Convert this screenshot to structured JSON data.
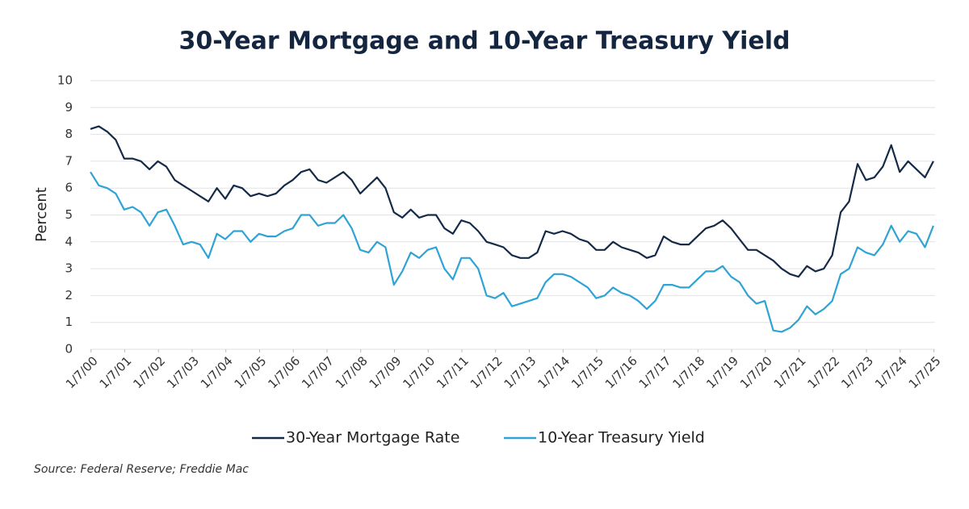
{
  "chart_data": {
    "type": "line",
    "title": "30-Year Mortgage and 10-Year Treasury Yield",
    "y_label": "Percent",
    "source": "Source: Federal Reserve; Freddie Mac",
    "x": [
      2000,
      2000.25,
      2000.5,
      2000.75,
      2001,
      2001.25,
      2001.5,
      2001.75,
      2002,
      2002.25,
      2002.5,
      2002.75,
      2003,
      2003.25,
      2003.5,
      2003.75,
      2004,
      2004.25,
      2004.5,
      2004.75,
      2005,
      2005.25,
      2005.5,
      2005.75,
      2006,
      2006.25,
      2006.5,
      2006.75,
      2007,
      2007.25,
      2007.5,
      2007.75,
      2008,
      2008.25,
      2008.5,
      2008.75,
      2009,
      2009.25,
      2009.5,
      2009.75,
      2010,
      2010.25,
      2010.5,
      2010.75,
      2011,
      2011.25,
      2011.5,
      2011.75,
      2012,
      2012.25,
      2012.5,
      2012.75,
      2013,
      2013.25,
      2013.5,
      2013.75,
      2014,
      2014.25,
      2014.5,
      2014.75,
      2015,
      2015.25,
      2015.5,
      2015.75,
      2016,
      2016.25,
      2016.5,
      2016.75,
      2017,
      2017.25,
      2017.5,
      2017.75,
      2018,
      2018.25,
      2018.5,
      2018.75,
      2019,
      2019.25,
      2019.5,
      2019.75,
      2020,
      2020.25,
      2020.5,
      2020.75,
      2021,
      2021.25,
      2021.5,
      2021.75,
      2022,
      2022.25,
      2022.5,
      2022.75,
      2023,
      2023.25,
      2023.5,
      2023.75,
      2024,
      2024.25,
      2024.5,
      2024.75,
      2025
    ],
    "series": [
      {
        "name": "30-Year Mortgage Rate",
        "color": "#152a47",
        "values": [
          8.2,
          8.3,
          8.1,
          7.8,
          7.1,
          7.1,
          7.0,
          6.7,
          7.0,
          6.8,
          6.3,
          6.1,
          5.9,
          5.7,
          5.5,
          6.0,
          5.6,
          6.1,
          6.0,
          5.7,
          5.8,
          5.7,
          5.8,
          6.1,
          6.3,
          6.6,
          6.7,
          6.3,
          6.2,
          6.4,
          6.6,
          6.3,
          5.8,
          6.1,
          6.4,
          6.0,
          5.1,
          4.9,
          5.2,
          4.9,
          5.0,
          5.0,
          4.5,
          4.3,
          4.8,
          4.7,
          4.4,
          4.0,
          3.9,
          3.8,
          3.5,
          3.4,
          3.4,
          3.6,
          4.4,
          4.3,
          4.4,
          4.3,
          4.1,
          4.0,
          3.7,
          3.7,
          4.0,
          3.8,
          3.7,
          3.6,
          3.4,
          3.5,
          4.2,
          4.0,
          3.9,
          3.9,
          4.2,
          4.5,
          4.6,
          4.8,
          4.5,
          4.1,
          3.7,
          3.7,
          3.5,
          3.3,
          3.0,
          2.8,
          2.7,
          3.1,
          2.9,
          3.0,
          3.5,
          5.1,
          5.5,
          6.9,
          6.3,
          6.4,
          6.8,
          7.6,
          6.6,
          7.0,
          6.7,
          6.4,
          7.0
        ]
      },
      {
        "name": "10-Year Treasury Yield",
        "color": "#2ea3d4",
        "values": [
          6.6,
          6.1,
          6.0,
          5.8,
          5.2,
          5.3,
          5.1,
          4.6,
          5.1,
          5.2,
          4.6,
          3.9,
          4.0,
          3.9,
          3.4,
          4.3,
          4.1,
          4.4,
          4.4,
          4.0,
          4.3,
          4.2,
          4.2,
          4.4,
          4.5,
          5.0,
          5.0,
          4.6,
          4.7,
          4.7,
          5.0,
          4.5,
          3.7,
          3.6,
          4.0,
          3.8,
          2.4,
          2.9,
          3.6,
          3.4,
          3.7,
          3.8,
          3.0,
          2.6,
          3.4,
          3.4,
          3.0,
          2.0,
          1.9,
          2.1,
          1.6,
          1.7,
          1.8,
          1.9,
          2.5,
          2.8,
          2.8,
          2.7,
          2.5,
          2.3,
          1.9,
          2.0,
          2.3,
          2.1,
          2.0,
          1.8,
          1.5,
          1.8,
          2.4,
          2.4,
          2.3,
          2.3,
          2.6,
          2.9,
          2.9,
          3.1,
          2.7,
          2.5,
          2.0,
          1.7,
          1.8,
          0.7,
          0.65,
          0.8,
          1.1,
          1.6,
          1.3,
          1.5,
          1.8,
          2.8,
          3.0,
          3.8,
          3.6,
          3.5,
          3.9,
          4.6,
          4.0,
          4.4,
          4.3,
          3.8,
          4.6
        ]
      }
    ],
    "xlim": [
      2000,
      2025.05
    ],
    "xticks": [
      {
        "value": 2000.016,
        "label": "1/7/00"
      },
      {
        "value": 2001.016,
        "label": "1/7/01"
      },
      {
        "value": 2002.016,
        "label": "1/7/02"
      },
      {
        "value": 2003.016,
        "label": "1/7/03"
      },
      {
        "value": 2004.016,
        "label": "1/7/04"
      },
      {
        "value": 2005.016,
        "label": "1/7/05"
      },
      {
        "value": 2006.016,
        "label": "1/7/06"
      },
      {
        "value": 2007.016,
        "label": "1/7/07"
      },
      {
        "value": 2008.016,
        "label": "1/7/08"
      },
      {
        "value": 2009.016,
        "label": "1/7/09"
      },
      {
        "value": 2010.016,
        "label": "1/7/10"
      },
      {
        "value": 2011.016,
        "label": "1/7/11"
      },
      {
        "value": 2012.016,
        "label": "1/7/12"
      },
      {
        "value": 2013.016,
        "label": "1/7/13"
      },
      {
        "value": 2014.016,
        "label": "1/7/14"
      },
      {
        "value": 2015.016,
        "label": "1/7/15"
      },
      {
        "value": 2016.016,
        "label": "1/7/16"
      },
      {
        "value": 2017.016,
        "label": "1/7/17"
      },
      {
        "value": 2018.016,
        "label": "1/7/18"
      },
      {
        "value": 2019.016,
        "label": "1/7/19"
      },
      {
        "value": 2020.016,
        "label": "1/7/20"
      },
      {
        "value": 2021.016,
        "label": "1/7/21"
      },
      {
        "value": 2022.016,
        "label": "1/7/22"
      },
      {
        "value": 2023.016,
        "label": "1/7/23"
      },
      {
        "value": 2024.016,
        "label": "1/7/24"
      },
      {
        "value": 2025.016,
        "label": "1/7/25"
      }
    ],
    "ylim": [
      0,
      10
    ],
    "yticks": [
      0,
      1,
      2,
      3,
      4,
      5,
      6,
      7,
      8,
      9,
      10
    ],
    "grid": true
  }
}
